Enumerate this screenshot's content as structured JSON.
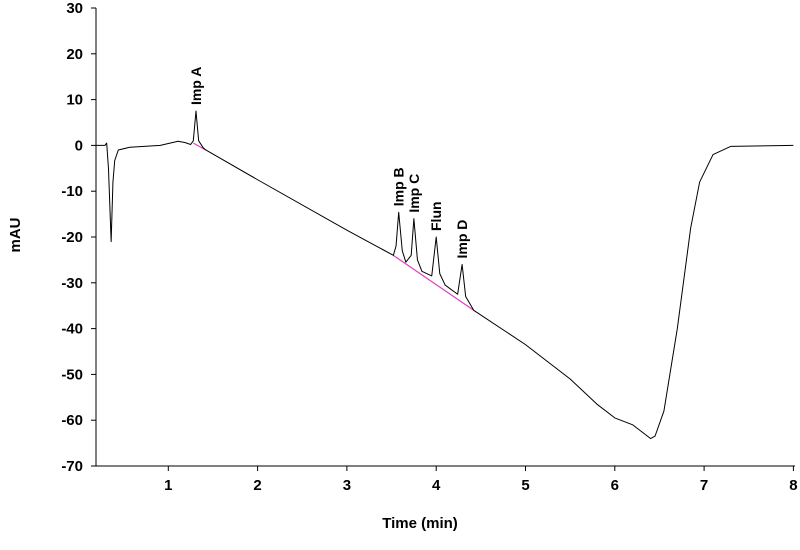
{
  "chart_data": {
    "type": "line",
    "title": "",
    "xlabel": "Time (min)",
    "ylabel": "mAU",
    "xlim": [
      0.19,
      8
    ],
    "ylim": [
      -70,
      30
    ],
    "xticks": [
      1,
      2,
      3,
      4,
      5,
      6,
      7,
      8
    ],
    "yticks": [
      30,
      20,
      10,
      0,
      -10,
      -20,
      -30,
      -40,
      -50,
      -60,
      -70
    ],
    "grid": false,
    "colors": {
      "trace": "#000000",
      "baseline": "#e040c0"
    },
    "series": [
      {
        "name": "chromatogram",
        "x": [
          0.19,
          0.29,
          0.31,
          0.33,
          0.36,
          0.38,
          0.4,
          0.44,
          0.57,
          0.91,
          1.11,
          1.19,
          1.25,
          1.28,
          1.31,
          1.34,
          1.39,
          1.42,
          2.0,
          3.0,
          3.52,
          3.55,
          3.58,
          3.62,
          3.66,
          3.72,
          3.75,
          3.79,
          3.84,
          3.95,
          4.0,
          4.04,
          4.1,
          4.24,
          4.29,
          4.33,
          4.42,
          5.0,
          5.5,
          5.8,
          6.0,
          6.2,
          6.3,
          6.4,
          6.45,
          6.55,
          6.7,
          6.85,
          6.95,
          7.1,
          7.3,
          8.0
        ],
        "y": [
          0,
          0,
          0.5,
          -5,
          -21,
          -8,
          -3.3,
          -1,
          -0.4,
          0,
          0.9,
          0.6,
          0.2,
          1,
          7.5,
          1,
          -0.5,
          -1,
          -7.5,
          -18.5,
          -24,
          -22,
          -14.6,
          -23,
          -25.5,
          -24,
          -16,
          -25,
          -27.5,
          -28.5,
          -20,
          -28,
          -30.5,
          -32.5,
          -26,
          -33,
          -36,
          -43.5,
          -51,
          -56.5,
          -59.5,
          -61,
          -62.5,
          -64,
          -63.5,
          -58,
          -40,
          -18,
          -8,
          -2,
          -0.2,
          0
        ]
      }
    ],
    "baselines": [
      {
        "x": [
          1.28,
          1.42
        ],
        "y": [
          0.5,
          -1
        ]
      },
      {
        "x": [
          3.52,
          4.42
        ],
        "y": [
          -24,
          -36
        ]
      }
    ],
    "annotations": [
      {
        "text": "Imp A",
        "x": 1.31,
        "y": 7.5
      },
      {
        "text": "Imp B",
        "x": 3.58,
        "y": -14.6
      },
      {
        "text": "Imp C",
        "x": 3.75,
        "y": -16
      },
      {
        "text": "Flun",
        "x": 4.0,
        "y": -20
      },
      {
        "text": "Imp D",
        "x": 4.29,
        "y": -26
      }
    ]
  }
}
